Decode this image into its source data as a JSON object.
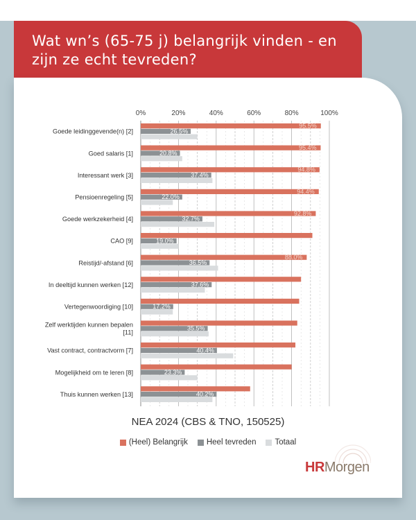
{
  "header": {
    "title": "Wat wn’s (65-75 j) belangrijk vinden - en zijn ze echt tevreden?"
  },
  "colors": {
    "header_bg": "#c8383a",
    "belangrijk": "#d9725e",
    "tevreden": "#8c9194",
    "totaal": "#d9dcde",
    "background": "#b7c8cf"
  },
  "chart_data": {
    "type": "bar",
    "orientation": "horizontal",
    "xlim": [
      0,
      100
    ],
    "x_ticks": [
      "0%",
      "20%",
      "40%",
      "60%",
      "80%",
      "100%"
    ],
    "grid": "vertical dashed",
    "categories": [
      [
        "Goede leidinggevende(n) [2]"
      ],
      [
        "Goed salaris [1]"
      ],
      [
        "Interessant werk [3]"
      ],
      [
        "Pensioenregeling [5]"
      ],
      [
        "Goede werkzekerheid [4]"
      ],
      [
        "CAO [9]"
      ],
      [
        "Reistijd/-afstand [6]"
      ],
      [
        "In deeltijd kunnen werken [12]"
      ],
      [
        "Vertegenwoordiging [10]"
      ],
      [
        "Zelf werktijden kunnen bepalen",
        "[11]"
      ],
      [
        "Vast contract, contractvorm [7]"
      ],
      [
        "Mogelijkheid om te leren [8]"
      ],
      [
        "Thuis kunnen werken [13]"
      ]
    ],
    "series": [
      {
        "name": "(Heel) Belangrijk",
        "values": [
          95.5,
          95.4,
          94.8,
          94.4,
          92.8,
          91,
          88.0,
          85,
          84,
          83,
          82,
          80,
          58
        ],
        "labels": [
          "95.5%",
          "95.4%",
          "94.8%",
          "94.4%",
          "92.8%",
          "",
          "88.0%",
          "",
          "",
          "",
          "",
          "",
          ""
        ]
      },
      {
        "name": "Heel tevreden",
        "values": [
          26.5,
          20.8,
          37.4,
          22.0,
          32.7,
          19.0,
          36.5,
          37.6,
          17.2,
          35.5,
          40.4,
          23.3,
          40.2
        ],
        "labels": [
          "26.5%",
          "20.8%",
          "37.4%",
          "22.0%",
          "32.7%",
          "19.0%",
          "36.5%",
          "37.6%",
          "17.2%",
          "35.5%",
          "40.4%",
          "23.3%",
          "40.2%"
        ]
      },
      {
        "name": "Totaal",
        "values": [
          30,
          22,
          38,
          17,
          39,
          20,
          41,
          34,
          17,
          36,
          49,
          30,
          38
        ]
      }
    ]
  },
  "source": "NEA 2024 (CBS & TNO, 150525)",
  "logo": {
    "part1": "HR",
    "part2": "Morgen"
  }
}
